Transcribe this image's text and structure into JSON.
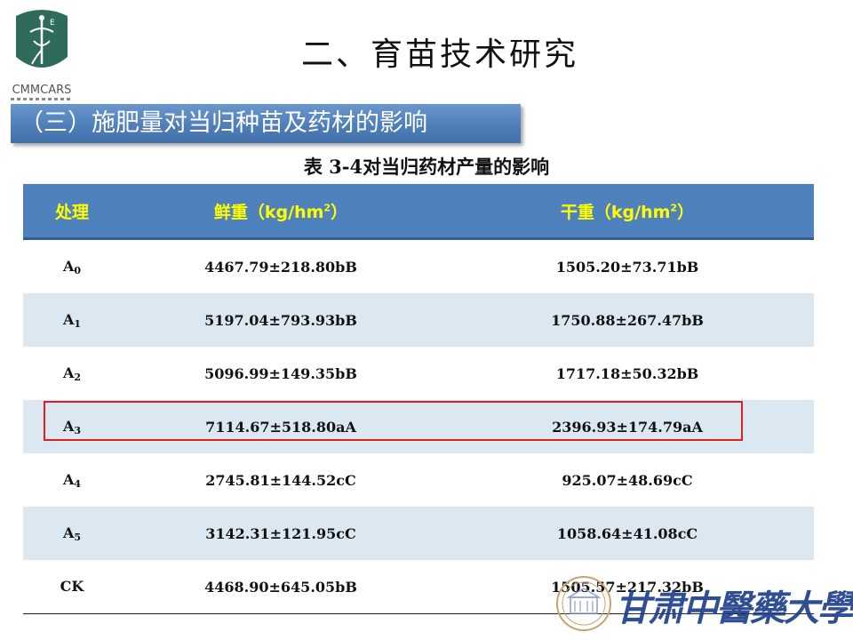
{
  "logo": {
    "icon": "cmmcars-emblem",
    "text": "CMMCARS",
    "color": "#2f6b5a"
  },
  "slide": {
    "title": "二、育苗技术研究",
    "section": "（三）施肥量对当归种苗及药材的影响"
  },
  "table": {
    "caption": "表 3-4对当归药材产量的影响",
    "headers": [
      "处理",
      "鲜重（kg/hm",
      "2",
      "）",
      "干重（kg/hm",
      "2",
      "）"
    ],
    "header_cells": [
      {
        "label": "处理"
      },
      {
        "label_pre": "鲜重（kg/hm",
        "sup": "2",
        "label_post": "）"
      },
      {
        "label_pre": "干重（kg/hm",
        "sup": "2",
        "label_post": "）"
      }
    ],
    "rows": [
      {
        "treatment": "A",
        "sub": "0",
        "fresh": "4467.79±218.80bB",
        "dry": "1505.20±73.71bB"
      },
      {
        "treatment": "A",
        "sub": "1",
        "fresh": "5197.04±793.93bB",
        "dry": "1750.88±267.47bB"
      },
      {
        "treatment": "A",
        "sub": "2",
        "fresh": "5096.99±149.35bB",
        "dry": "1717.18±50.32bB"
      },
      {
        "treatment": "A",
        "sub": "3",
        "fresh": "7114.67±518.80aA",
        "dry": "2396.93±174.79aA"
      },
      {
        "treatment": "A",
        "sub": "4",
        "fresh": "2745.81±144.52cC",
        "dry": "925.07±48.69cC"
      },
      {
        "treatment": "A",
        "sub": "5",
        "fresh": "3142.31±121.95cC",
        "dry": "1058.64±41.08cC"
      },
      {
        "treatment": "CK",
        "sub": "",
        "fresh": "4468.90±645.05bB",
        "dry": "1505.57±217.32bB"
      }
    ],
    "header_color": "#4f81bd",
    "header_text_color": "#ffff00",
    "stripe_color": "#dbe8f1",
    "highlight_color": "#e02020"
  },
  "footer": {
    "emblem_icon": "university-emblem",
    "university_name": "甘肃中醫藥大學"
  }
}
